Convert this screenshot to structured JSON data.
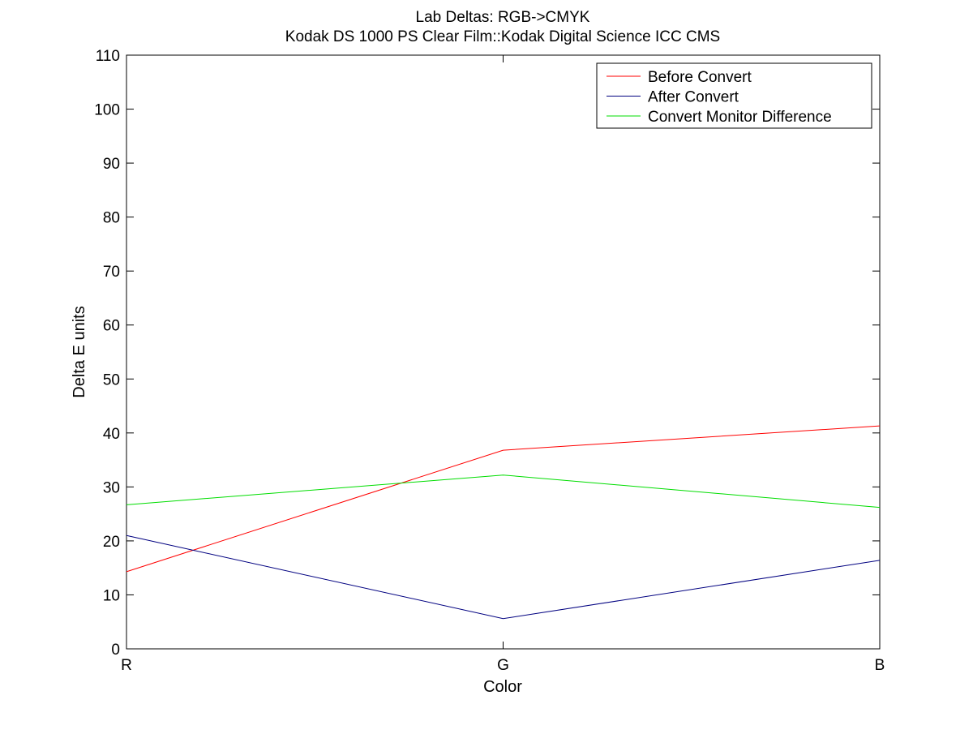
{
  "chart_data": {
    "type": "line",
    "title": "Lab Deltas: RGB->CMYK",
    "subtitle": "Kodak DS 1000 PS Clear Film::Kodak Digital Science ICC CMS",
    "xlabel": "Color",
    "ylabel": "Delta E units",
    "categories": [
      "R",
      "G",
      "B"
    ],
    "ylim": [
      0,
      110
    ],
    "yticks": [
      0,
      10,
      20,
      30,
      40,
      50,
      60,
      70,
      80,
      90,
      100,
      110
    ],
    "grid": false,
    "legend_position": "top-right",
    "series": [
      {
        "name": "Before Convert",
        "color": "#ff0000",
        "values": [
          14.3,
          36.8,
          41.3
        ]
      },
      {
        "name": "After Convert",
        "color": "#000080",
        "values": [
          21.0,
          5.6,
          16.4
        ]
      },
      {
        "name": "Convert Monitor Difference",
        "color": "#00dd00",
        "values": [
          26.7,
          32.2,
          26.2
        ]
      }
    ]
  }
}
